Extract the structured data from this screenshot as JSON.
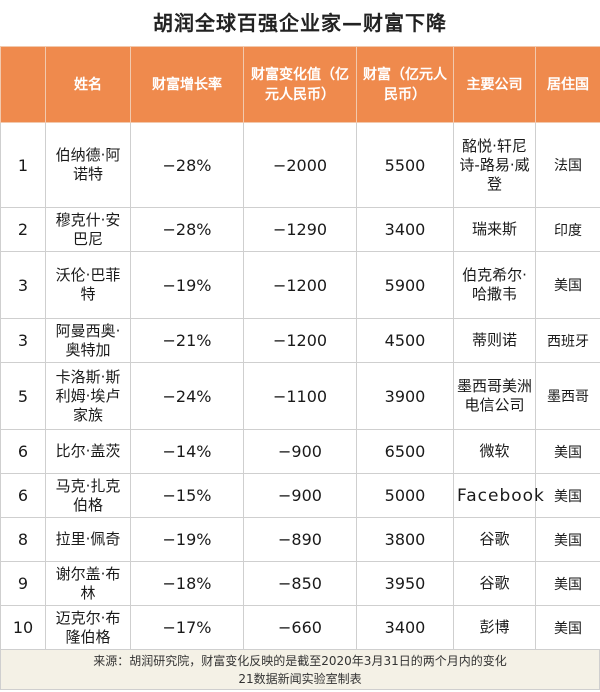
{
  "title": "胡润全球百强企业家—财富下降",
  "colors": {
    "header": "#ef8a4d",
    "footer": "#f4f1e6"
  },
  "chart_data": {
    "type": "table",
    "columns": [
      "",
      "姓名",
      "财富增长率",
      "财富变化值（亿元人民币）",
      "财富（亿元人民币）",
      "主要公司",
      "居住国"
    ],
    "rows": [
      {
        "rank": "1",
        "name": "伯纳德·阿诺特",
        "growth": "−28%",
        "change": "−2000",
        "wealth": "5500",
        "company": "酩悦·轩尼诗-路易·威登",
        "country": "法国"
      },
      {
        "rank": "2",
        "name": "穆克什·安巴尼",
        "growth": "−28%",
        "change": "−1290",
        "wealth": "3400",
        "company": "瑞来斯",
        "country": "印度"
      },
      {
        "rank": "3",
        "name": "沃伦·巴菲特",
        "growth": "−19%",
        "change": "−1200",
        "wealth": "5900",
        "company": "伯克希尔·哈撒韦",
        "country": "美国"
      },
      {
        "rank": "3",
        "name": "阿曼西奥·奥特加",
        "growth": "−21%",
        "change": "−1200",
        "wealth": "4500",
        "company": "蒂则诺",
        "country": "西班牙"
      },
      {
        "rank": "5",
        "name": "卡洛斯·斯利姆·埃卢家族",
        "growth": "−24%",
        "change": "−1100",
        "wealth": "3900",
        "company": "墨西哥美洲电信公司",
        "country": "墨西哥"
      },
      {
        "rank": "6",
        "name": "比尔·盖茨",
        "growth": "−14%",
        "change": "−900",
        "wealth": "6500",
        "company": "微软",
        "country": "美国"
      },
      {
        "rank": "6",
        "name": "马克·扎克伯格",
        "growth": "−15%",
        "change": "−900",
        "wealth": "5000",
        "company": "Facebook",
        "country": "美国"
      },
      {
        "rank": "8",
        "name": "拉里·佩奇",
        "growth": "−19%",
        "change": "−890",
        "wealth": "3800",
        "company": "谷歌",
        "country": "美国"
      },
      {
        "rank": "9",
        "name": "谢尔盖·布林",
        "growth": "−18%",
        "change": "−850",
        "wealth": "3950",
        "company": "谷歌",
        "country": "美国"
      },
      {
        "rank": "10",
        "name": "迈克尔·布隆伯格",
        "growth": "−17%",
        "change": "−660",
        "wealth": "3400",
        "company": "彭博",
        "country": "美国"
      }
    ]
  },
  "footer": {
    "source": "来源：胡润研究院，财富变化反映的是截至2020年3月31日的两个月内的变化",
    "credit": "21数据新闻实验室制表"
  }
}
